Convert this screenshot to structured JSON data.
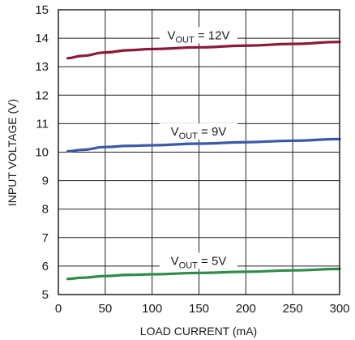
{
  "chart_data": {
    "type": "line",
    "xlabel": "LOAD CURRENT (mA)",
    "ylabel": "INPUT VOLTAGE (V)",
    "xlim": [
      0,
      300
    ],
    "ylim": [
      5,
      15
    ],
    "x_ticks": [
      0,
      50,
      100,
      150,
      200,
      250,
      300
    ],
    "y_ticks": [
      5,
      6,
      7,
      8,
      9,
      10,
      11,
      12,
      13,
      14,
      15
    ],
    "grid": true,
    "series": [
      {
        "name_main": "V",
        "name_sub": "OUT",
        "name_rest": " = 12V",
        "color": "#8b1a3a",
        "x": [
          10,
          25,
          50,
          75,
          100,
          150,
          200,
          250,
          300
        ],
        "y": [
          13.3,
          13.38,
          13.5,
          13.58,
          13.62,
          13.68,
          13.74,
          13.8,
          13.87
        ]
      },
      {
        "name_main": "V",
        "name_sub": "OUT",
        "name_rest": " = 9V",
        "color": "#3a5aa8",
        "x": [
          10,
          25,
          50,
          75,
          100,
          150,
          200,
          250,
          300
        ],
        "y": [
          10.03,
          10.08,
          10.18,
          10.22,
          10.24,
          10.3,
          10.35,
          10.4,
          10.46
        ]
      },
      {
        "name_main": "V",
        "name_sub": "OUT",
        "name_rest": " = 5V",
        "color": "#2e8b4a",
        "x": [
          10,
          25,
          50,
          75,
          100,
          150,
          200,
          250,
          300
        ],
        "y": [
          5.55,
          5.59,
          5.65,
          5.69,
          5.71,
          5.76,
          5.8,
          5.85,
          5.9
        ]
      }
    ]
  }
}
